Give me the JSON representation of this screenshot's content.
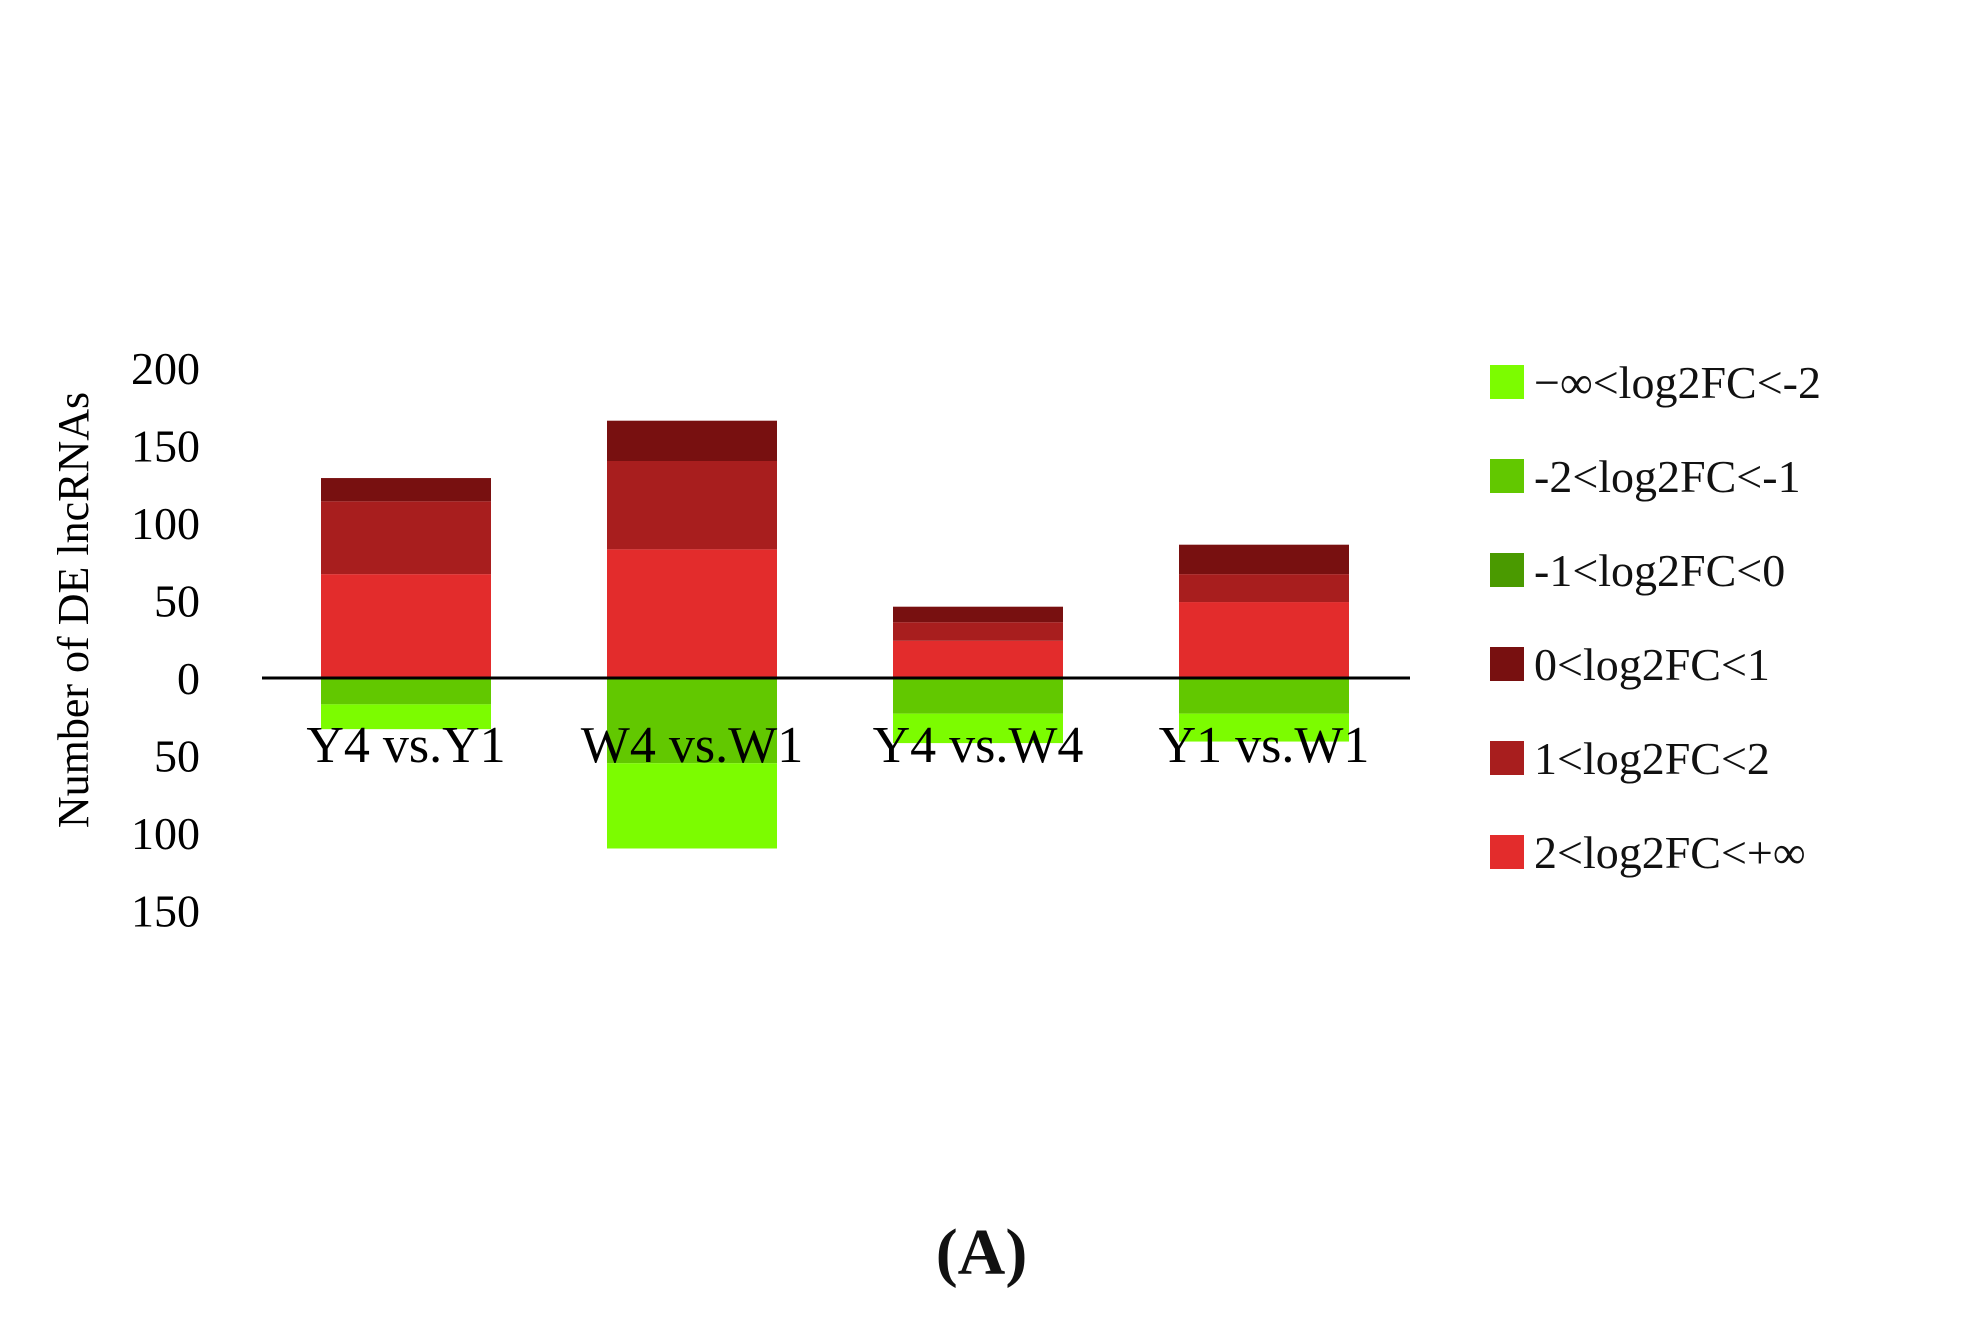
{
  "chart_data": {
    "type": "bar",
    "stacked": true,
    "ylabel": "Number of DE lncRNAs",
    "ylim": [
      -150,
      200
    ],
    "ytick_values": [
      200,
      150,
      100,
      50,
      0,
      -50,
      -100,
      -150
    ],
    "ytick_labels": [
      "200",
      "150",
      "100",
      "50",
      "0",
      "50",
      "100",
      "150"
    ],
    "categories": [
      "Y4 vs.Y1",
      "W4 vs.W1",
      "Y4 vs.W4",
      "Y1 vs.W1"
    ],
    "series": [
      {
        "name": "−∞<log2FC<-2",
        "color": "#7cfc00",
        "values": [
          -16,
          -55,
          -19,
          -18
        ]
      },
      {
        "name": "-2<log2FC<-1",
        "color": "#62c800",
        "values": [
          -17,
          -55,
          -23,
          -23
        ]
      },
      {
        "name": "-1<log2FC<0",
        "color": "#4a9a00",
        "values": [
          0,
          0,
          0,
          0
        ]
      },
      {
        "name": "0<log2FC<1",
        "color": "#781010",
        "values": [
          15,
          26,
          10,
          19
        ]
      },
      {
        "name": "1<log2FC<2",
        "color": "#a81e1e",
        "values": [
          47,
          57,
          12,
          18
        ]
      },
      {
        "name": "2<log2FC<+∞",
        "color": "#e32c2c",
        "values": [
          67,
          83,
          24,
          49
        ]
      }
    ],
    "legend_position": "right",
    "grid": false
  },
  "panel_label": "(A)"
}
